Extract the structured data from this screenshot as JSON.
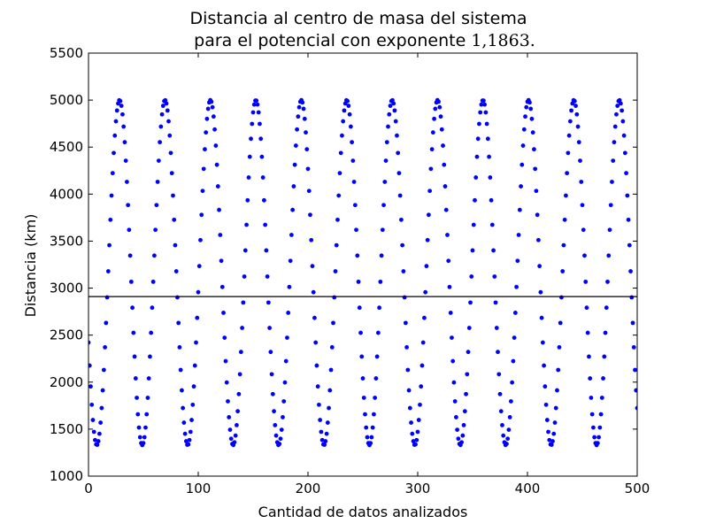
{
  "chart_data": {
    "type": "scatter",
    "title_line1": "Distancia al centro de masa del sistema",
    "title_line2_prefix": "para el potencial con exponente ",
    "title_math": "1,1863.",
    "xlabel": "Cantidad de datos analizados",
    "ylabel": "Distancia (km)",
    "xlim": [
      0,
      500
    ],
    "ylim": [
      1000,
      5500
    ],
    "xticks": [
      0,
      100,
      200,
      300,
      400,
      500
    ],
    "yticks": [
      1000,
      1500,
      2000,
      2500,
      3000,
      3500,
      4000,
      4500,
      5000,
      5500
    ],
    "grid": false,
    "marker_color": "#0000ff",
    "reference_line": {
      "y": 2910,
      "color": "#000000"
    },
    "series": [
      {
        "description": "oscillating distance samples, minimum ~1330 km, maximum ~5000 km, period ~41.4 samples",
        "min": 1330,
        "max": 5000,
        "period": 41.4,
        "minima_x": [
          7.6,
          49.0,
          90.4,
          131.8,
          173.2,
          214.6,
          256.0,
          297.4,
          338.8,
          380.2,
          421.6,
          463.0
        ],
        "x_start": 0,
        "x_end": 500,
        "x_step": 1.0
      }
    ]
  }
}
